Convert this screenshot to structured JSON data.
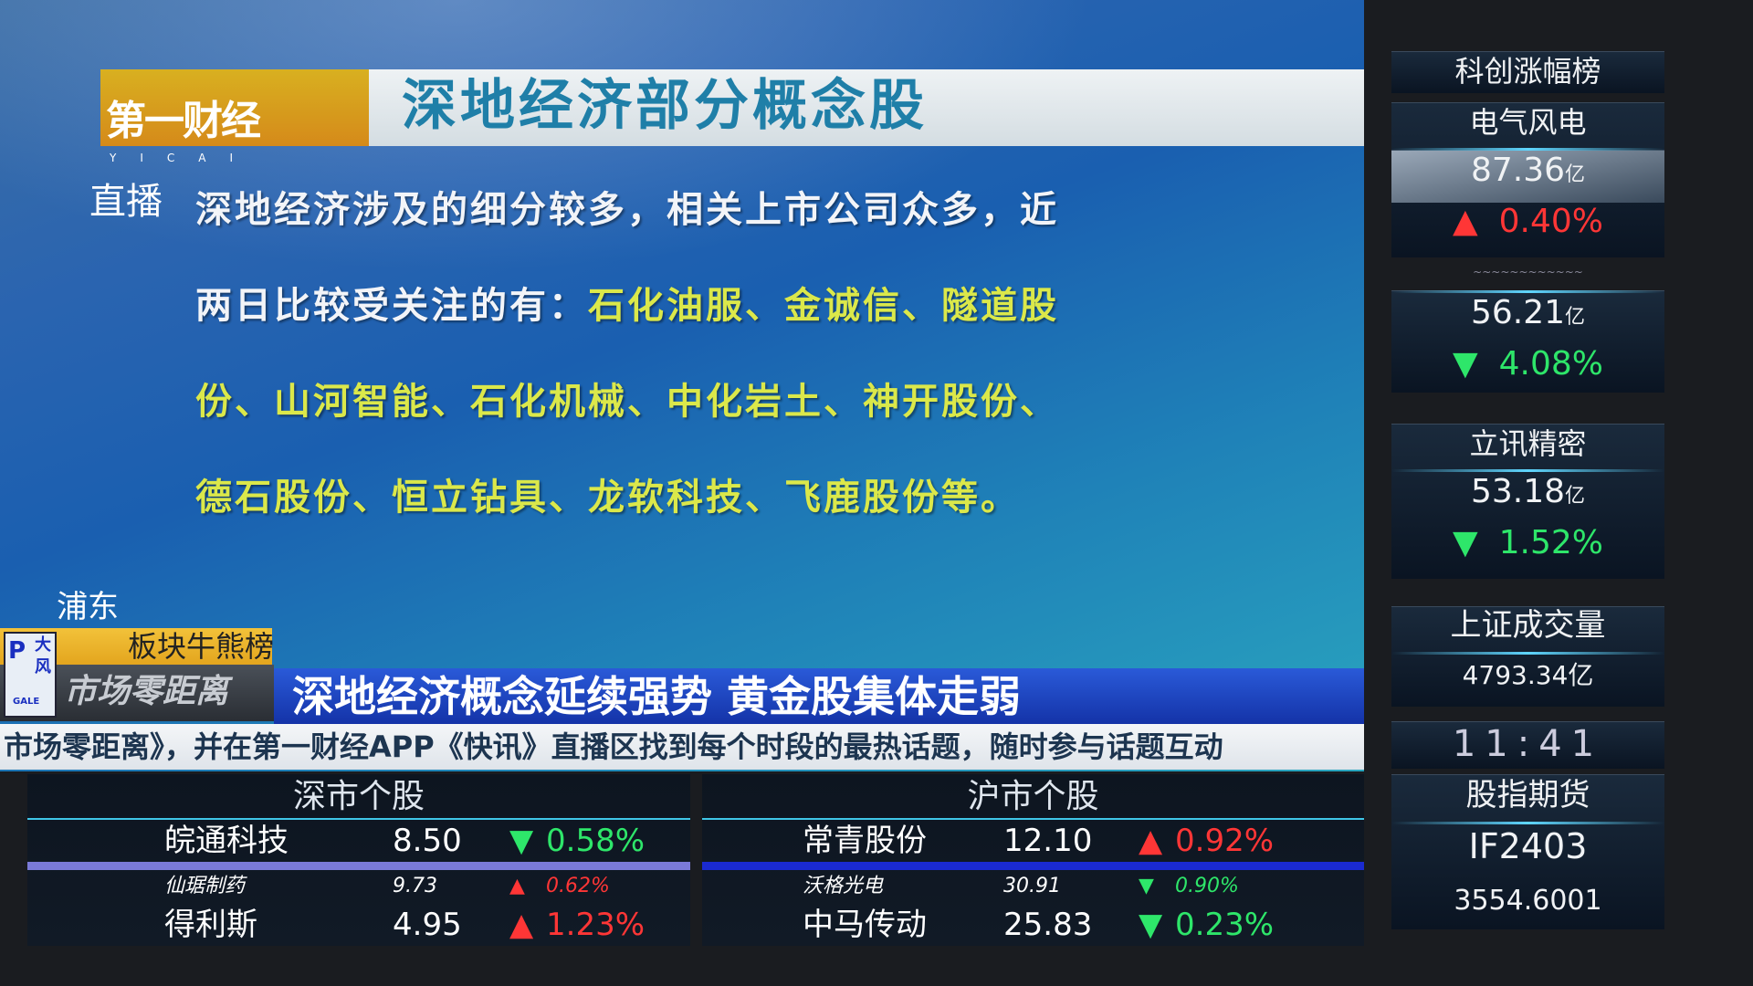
{
  "header": {
    "brand": "第一财经",
    "brand_sub": "YICAI",
    "title": "深地经济部分概念股"
  },
  "live_label": "直播",
  "body": {
    "line1": "深地经济涉及的细分较多，相关上市公司众多，近",
    "line2_lead": "两日比较受关注的有：",
    "line2_hl": "石化油服、金诚信、隧道股",
    "line3_hl": "份、山河智能、石化机械、中化岩土、神开股份、",
    "line4_hl": "德石股份、恒立钻具、龙软科技、飞鹿股份等。"
  },
  "location": "浦东",
  "segment": "板块牛熊榜",
  "program": "市场零距离",
  "channel_logo": {
    "top": "大",
    "bottom": "风",
    "tag": "GALE"
  },
  "headline": "深地经济概念延续强势 黄金股集体走弱",
  "ticker": "市场零距离》，并在第一财经APP《快讯》直播区找到每个时段的最热话题，随时参与话题互动",
  "tables": [
    {
      "title": "深市个股",
      "rows": [
        {
          "name": "皖通科技",
          "price": "8.50",
          "dir": "down",
          "change": "0.58%"
        },
        {
          "name": "仙琚制药",
          "price": "9.73",
          "dir": "up",
          "change": "0.62%"
        },
        {
          "name": "得利斯",
          "price": "4.95",
          "dir": "up",
          "change": "1.23%"
        }
      ]
    },
    {
      "title": "沪市个股",
      "rows": [
        {
          "name": "常青股份",
          "price": "12.10",
          "dir": "up",
          "change": "0.92%"
        },
        {
          "name": "沃格光电",
          "price": "30.91",
          "dir": "down",
          "change": "0.90%"
        },
        {
          "name": "中马传动",
          "price": "25.83",
          "dir": "down",
          "change": "0.23%"
        }
      ]
    }
  ],
  "side": {
    "title": "科创涨幅榜",
    "items": [
      {
        "name": "电气风电",
        "value": "87.36",
        "unit": "亿",
        "dir": "up",
        "change": "0.40%"
      },
      {
        "name": "",
        "value": "56.21",
        "unit": "亿",
        "dir": "down",
        "change": "4.08%"
      },
      {
        "name": "立讯精密",
        "value": "53.18",
        "unit": "亿",
        "dir": "down",
        "change": "1.52%"
      }
    ],
    "volume_label": "上证成交量",
    "volume": "4793.34亿",
    "clock": "11:41",
    "futures_label": "股指期货",
    "futures_code": "IF2403",
    "futures_value": "3554.6001"
  },
  "colors": {
    "up": "#ff3636",
    "down": "#2ee66a",
    "highlight": "#dbe84a",
    "title": "#1f7fa8"
  }
}
